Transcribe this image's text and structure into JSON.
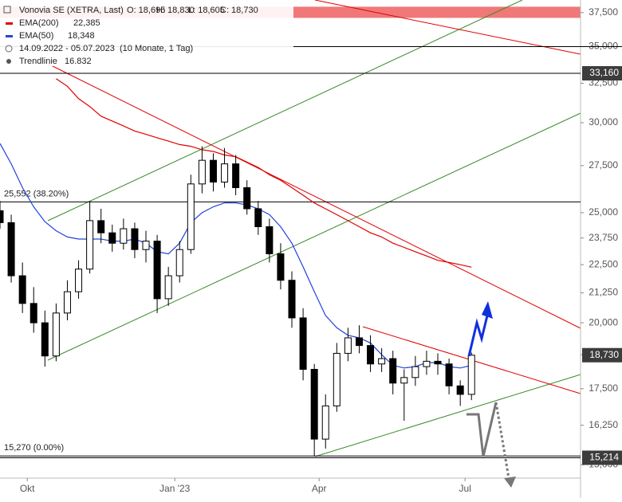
{
  "chart_data": {
    "type": "candlestick",
    "title": "Vonovia SE (XETRA, Last)",
    "ohlc_labels": [
      "O: 18,695",
      "H: 18,830",
      "L: 18,605",
      "C: 18,730"
    ],
    "period": "14.09.2022 - 05.07.2023",
    "period_note": "(10 Monate, 1 Tag)",
    "trendline": {
      "name": "Trendlinie",
      "label": "16.832"
    },
    "log_scale": true,
    "up_color": "#ffffff",
    "down_color": "#000000",
    "xlim": [
      0,
      362
    ],
    "xticks": [
      {
        "value": 17,
        "label": "Okt"
      },
      {
        "value": 109,
        "label": "Jan '23"
      },
      {
        "value": 199,
        "label": "Apr"
      },
      {
        "value": 290,
        "label": "Jul"
      }
    ],
    "ylim": [
      14600,
      38470
    ],
    "yticks": [
      {
        "value": 15000,
        "label": "15,000"
      },
      {
        "value": 16250,
        "label": "16,250"
      },
      {
        "value": 17500,
        "label": "17,500"
      },
      {
        "value": 18750,
        "label": "18,750"
      },
      {
        "value": 20000,
        "label": "20,000"
      },
      {
        "value": 21250,
        "label": "21,250"
      },
      {
        "value": 22500,
        "label": "22,500"
      },
      {
        "value": 23750,
        "label": "23,750"
      },
      {
        "value": 25000,
        "label": "25,000"
      },
      {
        "value": 27500,
        "label": "27,500"
      },
      {
        "value": 30000,
        "label": "30,000"
      },
      {
        "value": 32500,
        "label": "32,500"
      },
      {
        "value": 35000,
        "label": "35,000"
      },
      {
        "value": 37500,
        "label": "37,500"
      }
    ],
    "x": [
      0,
      7,
      14,
      21,
      28,
      35,
      42,
      49,
      56,
      63,
      70,
      77,
      84,
      91,
      98,
      105,
      112,
      119,
      126,
      133,
      140,
      147,
      154,
      161,
      168,
      175,
      182,
      189,
      196,
      203,
      210,
      217,
      224,
      231,
      238,
      245,
      252,
      259,
      266,
      273,
      280,
      287,
      294
    ],
    "open": [
      25100,
      24500,
      22000,
      20800,
      20000,
      18700,
      20400,
      21300,
      22300,
      24600,
      24000,
      23500,
      24200,
      23200,
      23600,
      21000,
      22000,
      23200,
      26500,
      27800,
      26600,
      27600,
      26300,
      25200,
      24300,
      23000,
      21800,
      20200,
      18200,
      15800,
      16900,
      18800,
      19400,
      19100,
      18400,
      18600,
      17700,
      17900,
      18300,
      18500,
      18400,
      17600,
      17300
    ],
    "high": [
      25600,
      24900,
      22600,
      21500,
      20500,
      20800,
      21800,
      22700,
      25600,
      25200,
      24400,
      24700,
      24500,
      24100,
      23900,
      22400,
      23600,
      27000,
      28600,
      28200,
      28500,
      28100,
      26700,
      25600,
      24700,
      23500,
      22200,
      20600,
      18400,
      17300,
      19200,
      19800,
      19900,
      19500,
      19000,
      18900,
      18200,
      18700,
      18900,
      18800,
      18600,
      17800,
      18830
    ],
    "low": [
      24200,
      21700,
      20400,
      19600,
      18300,
      18500,
      20100,
      21000,
      22100,
      23500,
      23100,
      23200,
      22800,
      22600,
      20400,
      20700,
      21700,
      23000,
      26000,
      26100,
      26300,
      25900,
      24900,
      23900,
      22600,
      21400,
      19800,
      17800,
      15270,
      15500,
      16700,
      18500,
      18800,
      18100,
      18100,
      17300,
      16400,
      17600,
      18000,
      18000,
      17300,
      16900,
      17100
    ],
    "close": [
      24500,
      22000,
      20800,
      20000,
      18700,
      20400,
      21300,
      22300,
      24600,
      24000,
      23500,
      24200,
      23200,
      23600,
      21000,
      22000,
      23200,
      26500,
      27800,
      26600,
      27600,
      26300,
      25200,
      24300,
      23000,
      21800,
      20200,
      18200,
      15800,
      16900,
      18800,
      19400,
      19100,
      18400,
      18600,
      17700,
      17900,
      18300,
      18500,
      18400,
      17600,
      17300,
      18730
    ],
    "series": [
      {
        "name": "EMA(200)",
        "color": "#e00000",
        "last": "22,385",
        "values": [
          null,
          null,
          null,
          null,
          null,
          32800,
          32300,
          31500,
          31000,
          30400,
          30100,
          29800,
          29500,
          29300,
          29100,
          28900,
          28700,
          28600,
          28400,
          28300,
          28100,
          28000,
          27700,
          27400,
          27000,
          26700,
          26300,
          25900,
          25500,
          25200,
          24900,
          24600,
          24300,
          24000,
          23800,
          23500,
          23300,
          23100,
          22900,
          22700,
          22600,
          22500,
          22385
        ]
      },
      {
        "name": "EMA(50)",
        "color": "#2244dd",
        "last": "18,348",
        "values": [
          28760,
          27600,
          26300,
          25300,
          24550,
          24100,
          23800,
          23700,
          23700,
          23700,
          23600,
          23600,
          23700,
          23500,
          23100,
          23000,
          23500,
          24500,
          25000,
          25300,
          25500,
          25500,
          25400,
          25200,
          24900,
          24300,
          23500,
          22400,
          21300,
          20300,
          19800,
          19500,
          19400,
          19200,
          18750,
          18350,
          18250,
          18300,
          18450,
          18450,
          18300,
          18250,
          18348
        ]
      }
    ],
    "zone": [
      37100,
      37950
    ],
    "levels": [
      {
        "value": 25552,
        "label": "25,552 (38.20%)"
      },
      {
        "value": 15270,
        "label": "15,270 (0.00%)"
      }
    ],
    "plain_levels": [
      35000
    ],
    "price_tags": [
      {
        "value": 33160,
        "label": "33,160"
      },
      {
        "value": 18730,
        "label": "18,730"
      },
      {
        "value": 15214,
        "label": "15,214"
      }
    ]
  }
}
